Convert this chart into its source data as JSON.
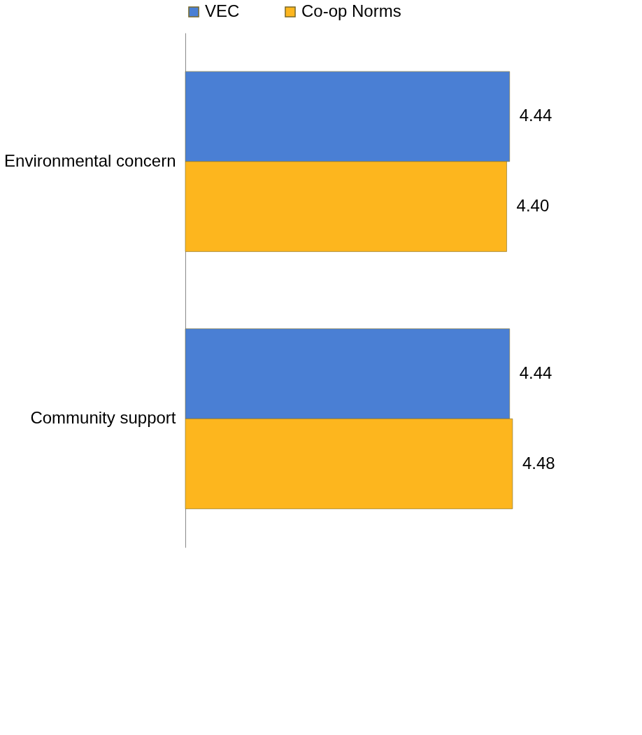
{
  "chart_data": {
    "type": "bar",
    "orientation": "horizontal",
    "categories": [
      "Environmental concern",
      "Community support"
    ],
    "series": [
      {
        "name": "VEC",
        "color": "#4a7fd4",
        "values": [
          4.44,
          4.44
        ],
        "value_labels": [
          "4.44",
          "4.44"
        ]
      },
      {
        "name": "Co-op Norms",
        "color": "#fdb61e",
        "values": [
          4.4,
          4.48
        ],
        "value_labels": [
          "4.40",
          "4.48"
        ]
      }
    ],
    "tick_labels": "y",
    "legend": "top"
  }
}
